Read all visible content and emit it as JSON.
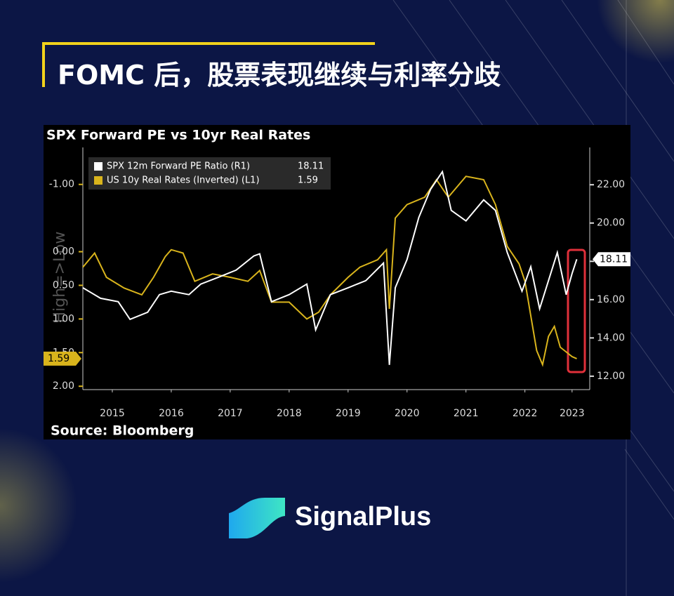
{
  "header": {
    "title": "FOMC 后，股票表现继续与利率分歧"
  },
  "chart_data": {
    "type": "line",
    "title": "SPX Forward PE vs 10yr Real Rates",
    "y_label": "High=>Low",
    "source": "Source: Bloomberg",
    "xlim": [
      2015,
      2023.6
    ],
    "xticks": [
      {
        "value": 2015.5,
        "label": "2015"
      },
      {
        "value": 2016.5,
        "label": "2016"
      },
      {
        "value": 2017.5,
        "label": "2017"
      },
      {
        "value": 2018.5,
        "label": "2018"
      },
      {
        "value": 2019.5,
        "label": "2019"
      },
      {
        "value": 2020.5,
        "label": "2020"
      },
      {
        "value": 2021.5,
        "label": "2021"
      },
      {
        "value": 2022.5,
        "label": "2022"
      },
      {
        "value": 2023.3,
        "label": "2023"
      }
    ],
    "ylim": [
      2.05,
      -1.55
    ],
    "yticks": [
      {
        "value": -1,
        "label": "-1.00"
      },
      {
        "value": 0,
        "label": "0.00"
      },
      {
        "value": 0.5,
        "label": "0.50"
      },
      {
        "value": 1,
        "label": "1.00"
      },
      {
        "value": 1.5,
        "label": "1.50"
      },
      {
        "value": 2,
        "label": "2.00"
      }
    ],
    "y2lim": [
      11.3,
      23.95
    ],
    "y2ticks": [
      {
        "value": 12,
        "label": "12.00"
      },
      {
        "value": 14,
        "label": "14.00"
      },
      {
        "value": 16,
        "label": "16.00"
      },
      {
        "value": 18,
        "label": "18.00"
      },
      {
        "value": 20,
        "label": "20.00"
      },
      {
        "value": 22,
        "label": "22.00"
      }
    ],
    "series": [
      {
        "name": "SPX 12m Forward PE Ratio (R1)",
        "color": "#ffffff",
        "axis": "y2",
        "x": [
          2015.0,
          2015.3,
          2015.6,
          2015.8,
          2016.1,
          2016.3,
          2016.5,
          2016.8,
          2017.0,
          2017.3,
          2017.6,
          2017.9,
          2018.0,
          2018.2,
          2018.5,
          2018.8,
          2018.95,
          2019.2,
          2019.5,
          2019.8,
          2020.1,
          2020.2,
          2020.3,
          2020.5,
          2020.7,
          2020.9,
          2021.1,
          2021.25,
          2021.5,
          2021.8,
          2022.0,
          2022.2,
          2022.45,
          2022.6,
          2022.75,
          2022.9,
          2023.05,
          2023.2,
          2023.3,
          2023.38
        ],
        "values": [
          16.62,
          16.07,
          15.89,
          14.97,
          15.34,
          16.26,
          16.44,
          16.26,
          16.81,
          17.17,
          17.54,
          18.28,
          18.39,
          15.89,
          16.26,
          16.81,
          14.42,
          16.26,
          16.62,
          16.99,
          17.91,
          12.59,
          16.62,
          18.09,
          20.29,
          21.76,
          22.68,
          20.66,
          20.11,
          21.21,
          20.66,
          18.46,
          16.44,
          17.72,
          15.52,
          16.99,
          18.46,
          16.26,
          17.36,
          18.11
        ]
      },
      {
        "name": "US 10y Real Rates (Inverted) (L1)",
        "color": "#d9b41c",
        "x": [
          2015.0,
          2015.2,
          2015.4,
          2015.7,
          2016.0,
          2016.2,
          2016.4,
          2016.5,
          2016.7,
          2016.9,
          2017.2,
          2017.5,
          2017.8,
          2018.0,
          2018.2,
          2018.5,
          2018.8,
          2019.0,
          2019.2,
          2019.5,
          2019.7,
          2020.0,
          2020.15,
          2020.2,
          2020.3,
          2020.5,
          2020.8,
          2021.0,
          2021.2,
          2021.5,
          2021.8,
          2022.0,
          2022.2,
          2022.4,
          2022.5,
          2022.7,
          2022.8,
          2022.9,
          2023.0,
          2023.1,
          2023.3,
          2023.38
        ],
        "values": [
          0.23,
          0.02,
          0.38,
          0.54,
          0.64,
          0.38,
          0.07,
          -0.03,
          0.02,
          0.44,
          0.33,
          0.38,
          0.44,
          0.28,
          0.75,
          0.75,
          1.0,
          0.9,
          0.64,
          0.38,
          0.23,
          0.12,
          -0.03,
          0.85,
          -0.5,
          -0.7,
          -0.81,
          -1.07,
          -0.81,
          -1.12,
          -1.07,
          -0.7,
          -0.08,
          0.18,
          0.44,
          1.47,
          1.68,
          1.26,
          1.11,
          1.42,
          1.56,
          1.59
        ]
      }
    ]
  },
  "brand": {
    "name": "SignalPlus"
  }
}
